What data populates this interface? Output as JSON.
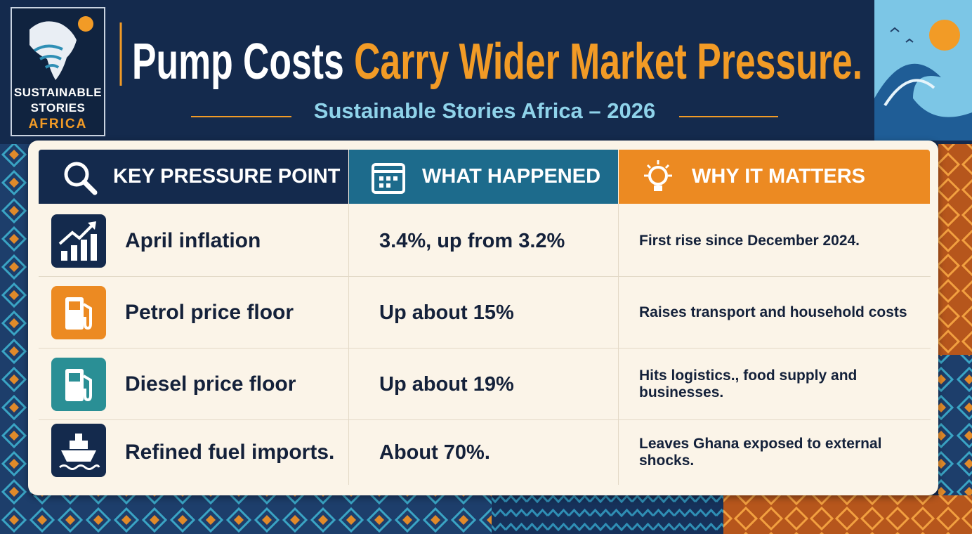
{
  "logo": {
    "line1": "SUSTAINABLE",
    "line2": "STORIES",
    "line3": "AFRICA"
  },
  "header": {
    "title_white": "Pump Costs",
    "title_orange": "Carry Wider Market Pressure.",
    "subtitle": "Sustainable Stories Africa – 2026"
  },
  "table": {
    "columns": [
      "KEY PRESSURE POINT",
      "WHAT HAPPENED",
      "WHY IT MATTERS"
    ],
    "rows": [
      [
        "April inflation",
        "3.4%, up from 3.2%",
        "First rise since December 2024."
      ],
      [
        "Petrol price floor",
        "Up about 15%",
        "Raises transport and household costs"
      ],
      [
        "Diesel price floor",
        "Up about 19%",
        "Hits logistics., food supply and businesses."
      ],
      [
        "Refined fuel imports.",
        "About 70%.",
        "Leaves Ghana exposed to external shocks."
      ]
    ]
  }
}
